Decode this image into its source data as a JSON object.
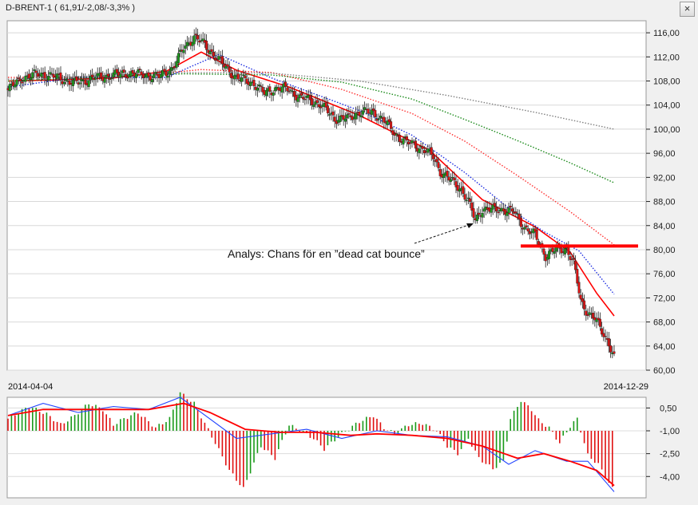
{
  "window": {
    "title": "D-BRENT-1 ( 61,91/-2,08/-3,3% )",
    "close_glyph": "×"
  },
  "colors": {
    "up": "#1a9a1a",
    "down": "#e01010",
    "ema_fast": "#ff0000",
    "ma_blue": "#1e2ee0",
    "ma_red_dot": "#ff3030",
    "ma_green_dot": "#1a8a1a",
    "ma_gray_dot": "#808080",
    "resistance": "#ff0000",
    "macd_line": "#2244ff",
    "signal_line": "#ff0000"
  },
  "chart_data": [
    {
      "type": "candlestick",
      "ylim": [
        60,
        118
      ],
      "y_ticks": [
        "116,00",
        "112,00",
        "108,00",
        "104,00",
        "100,00",
        "96,00",
        "92,00",
        "88,00",
        "84,00",
        "80,00",
        "76,00",
        "72,00",
        "68,00",
        "64,00",
        "60,00"
      ],
      "x_start": "2014-04-04",
      "x_end": "2014-12-29",
      "close_path": [
        [
          0,
          106.5
        ],
        [
          8,
          108.5
        ],
        [
          18,
          109.2
        ],
        [
          28,
          108.6
        ],
        [
          38,
          107.6
        ],
        [
          48,
          108.4
        ],
        [
          58,
          108.9
        ],
        [
          68,
          109.3
        ],
        [
          78,
          109.0
        ],
        [
          86,
          108.7
        ],
        [
          94,
          110.2
        ],
        [
          100,
          113.5
        ],
        [
          106,
          115.3
        ],
        [
          112,
          114.0
        ],
        [
          120,
          111.4
        ],
        [
          130,
          108.5
        ],
        [
          140,
          107.6
        ],
        [
          146,
          105.9
        ],
        [
          152,
          106.8
        ],
        [
          160,
          106.6
        ],
        [
          166,
          105.2
        ],
        [
          172,
          104.9
        ],
        [
          178,
          104.0
        ],
        [
          186,
          101.8
        ],
        [
          194,
          101.8
        ],
        [
          200,
          102.9
        ],
        [
          208,
          102.7
        ],
        [
          214,
          101.5
        ],
        [
          220,
          99.2
        ],
        [
          228,
          97.7
        ],
        [
          236,
          96.8
        ],
        [
          242,
          95.4
        ],
        [
          246,
          93.0
        ],
        [
          252,
          91.5
        ],
        [
          258,
          90.0
        ],
        [
          262,
          88.0
        ],
        [
          266,
          84.8
        ],
        [
          270,
          86.8
        ],
        [
          276,
          86.6
        ],
        [
          282,
          86.7
        ],
        [
          288,
          86.2
        ],
        [
          294,
          83.7
        ],
        [
          300,
          82.4
        ],
        [
          306,
          79.0
        ],
        [
          312,
          80.0
        ],
        [
          318,
          80.2
        ],
        [
          322,
          77.6
        ],
        [
          326,
          71.5
        ],
        [
          330,
          69.5
        ],
        [
          334,
          68.5
        ],
        [
          338,
          66.5
        ],
        [
          342,
          64.5
        ],
        [
          345,
          62.0
        ]
      ],
      "annotation": "Analys: Chans för en ”dead cat bounce”",
      "resistance_level": 80.6,
      "series": [
        {
          "style": "solid",
          "color": "ema_fast",
          "points": [
            [
              0,
              108.0
            ],
            [
              30,
              108.2
            ],
            [
              60,
              108.5
            ],
            [
              90,
              109.6
            ],
            [
              110,
              112.8
            ],
            [
              130,
              109.8
            ],
            [
              160,
              107.0
            ],
            [
              200,
              102.3
            ],
            [
              240,
              96.5
            ],
            [
              270,
              88.3
            ],
            [
              300,
              83.8
            ],
            [
              320,
              79.6
            ],
            [
              335,
              72.8
            ],
            [
              345,
              69.0
            ]
          ]
        },
        {
          "style": "dotted",
          "color": "ma_blue",
          "points": [
            [
              0,
              107.0
            ],
            [
              40,
              108.6
            ],
            [
              90,
              108.6
            ],
            [
              120,
              112.4
            ],
            [
              150,
              108.5
            ],
            [
              200,
              103.1
            ],
            [
              230,
              99.0
            ],
            [
              260,
              92.8
            ],
            [
              285,
              86.9
            ],
            [
              305,
              83.0
            ],
            [
              325,
              79.8
            ],
            [
              345,
              72.6
            ]
          ]
        },
        {
          "style": "dotted",
          "color": "ma_red_dot",
          "points": [
            [
              0,
              108.6
            ],
            [
              60,
              108.5
            ],
            [
              110,
              109.9
            ],
            [
              150,
              109.4
            ],
            [
              190,
              106.6
            ],
            [
              230,
              102.6
            ],
            [
              260,
              98.0
            ],
            [
              290,
              92.3
            ],
            [
              320,
              86.3
            ],
            [
              345,
              80.8
            ]
          ]
        },
        {
          "style": "dotted",
          "color": "ma_green_dot",
          "points": [
            [
              0,
              108.0
            ],
            [
              100,
              109.2
            ],
            [
              150,
              109.0
            ],
            [
              190,
              107.8
            ],
            [
              230,
              105.0
            ],
            [
              260,
              101.6
            ],
            [
              290,
              98.1
            ],
            [
              320,
              94.4
            ],
            [
              345,
              91.1
            ]
          ]
        },
        {
          "style": "dotted",
          "color": "ma_gray_dot",
          "points": [
            [
              0,
              108.3
            ],
            [
              100,
              109.4
            ],
            [
              150,
              109.3
            ],
            [
              200,
              108.0
            ],
            [
              250,
              105.6
            ],
            [
              300,
              102.8
            ],
            [
              345,
              100.0
            ]
          ]
        }
      ]
    },
    {
      "type": "macd",
      "ylim": [
        -5.4,
        1.2
      ],
      "y_ticks": [
        "0,50",
        "-1,00",
        "-2,50",
        "-4,00"
      ],
      "histogram_path": [
        [
          0,
          -0.2
        ],
        [
          12,
          0.6
        ],
        [
          22,
          0.1
        ],
        [
          30,
          -0.6
        ],
        [
          38,
          0.0
        ],
        [
          46,
          0.8
        ],
        [
          54,
          0.4
        ],
        [
          60,
          -0.6
        ],
        [
          66,
          -0.2
        ],
        [
          74,
          0.2
        ],
        [
          84,
          -0.8
        ],
        [
          92,
          -0.2
        ],
        [
          98,
          1.5
        ],
        [
          106,
          0.8
        ],
        [
          112,
          -0.5
        ],
        [
          118,
          -1.8
        ],
        [
          126,
          -3.6
        ],
        [
          134,
          -4.8
        ],
        [
          144,
          -2.0
        ],
        [
          152,
          -2.8
        ],
        [
          160,
          -0.6
        ],
        [
          166,
          -1.0
        ],
        [
          174,
          -1.5
        ],
        [
          180,
          -2.2
        ],
        [
          190,
          -1.2
        ],
        [
          200,
          -0.4
        ],
        [
          208,
          0.0
        ],
        [
          214,
          -0.8
        ],
        [
          220,
          -1.2
        ],
        [
          228,
          -0.6
        ],
        [
          236,
          -0.5
        ],
        [
          244,
          -1.0
        ],
        [
          250,
          -2.0
        ],
        [
          256,
          -2.5
        ],
        [
          262,
          -1.5
        ],
        [
          268,
          -2.8
        ],
        [
          276,
          -3.5
        ],
        [
          282,
          -3.0
        ],
        [
          286,
          -0.2
        ],
        [
          292,
          1.0
        ],
        [
          298,
          0.4
        ],
        [
          302,
          -0.3
        ],
        [
          308,
          -0.8
        ],
        [
          314,
          -1.8
        ],
        [
          320,
          -0.7
        ],
        [
          324,
          -0.2
        ],
        [
          330,
          -2.6
        ],
        [
          336,
          -3.2
        ],
        [
          345,
          -5.0
        ]
      ],
      "series": [
        {
          "style": "solid",
          "color": "macd_line",
          "points": [
            [
              0,
              0.0
            ],
            [
              20,
              0.8
            ],
            [
              40,
              0.2
            ],
            [
              60,
              0.6
            ],
            [
              80,
              0.4
            ],
            [
              98,
              1.2
            ],
            [
              110,
              0.2
            ],
            [
              130,
              -1.5
            ],
            [
              150,
              -1.2
            ],
            [
              170,
              -0.9
            ],
            [
              190,
              -1.5
            ],
            [
              210,
              -1.0
            ],
            [
              230,
              -1.3
            ],
            [
              250,
              -1.4
            ],
            [
              270,
              -2.0
            ],
            [
              285,
              -3.2
            ],
            [
              300,
              -2.3
            ],
            [
              318,
              -3.0
            ],
            [
              330,
              -3.0
            ],
            [
              345,
              -5.0
            ]
          ]
        },
        {
          "style": "solid",
          "color": "signal_line",
          "points": [
            [
              0,
              0.0
            ],
            [
              20,
              0.4
            ],
            [
              40,
              0.4
            ],
            [
              60,
              0.4
            ],
            [
              80,
              0.4
            ],
            [
              100,
              0.8
            ],
            [
              115,
              0.2
            ],
            [
              135,
              -0.9
            ],
            [
              155,
              -1.1
            ],
            [
              175,
              -1.1
            ],
            [
              195,
              -1.3
            ],
            [
              210,
              -1.2
            ],
            [
              230,
              -1.3
            ],
            [
              250,
              -1.5
            ],
            [
              270,
              -2.0
            ],
            [
              290,
              -2.8
            ],
            [
              305,
              -2.5
            ],
            [
              320,
              -3.0
            ],
            [
              335,
              -3.6
            ],
            [
              345,
              -4.6
            ]
          ]
        }
      ]
    }
  ]
}
